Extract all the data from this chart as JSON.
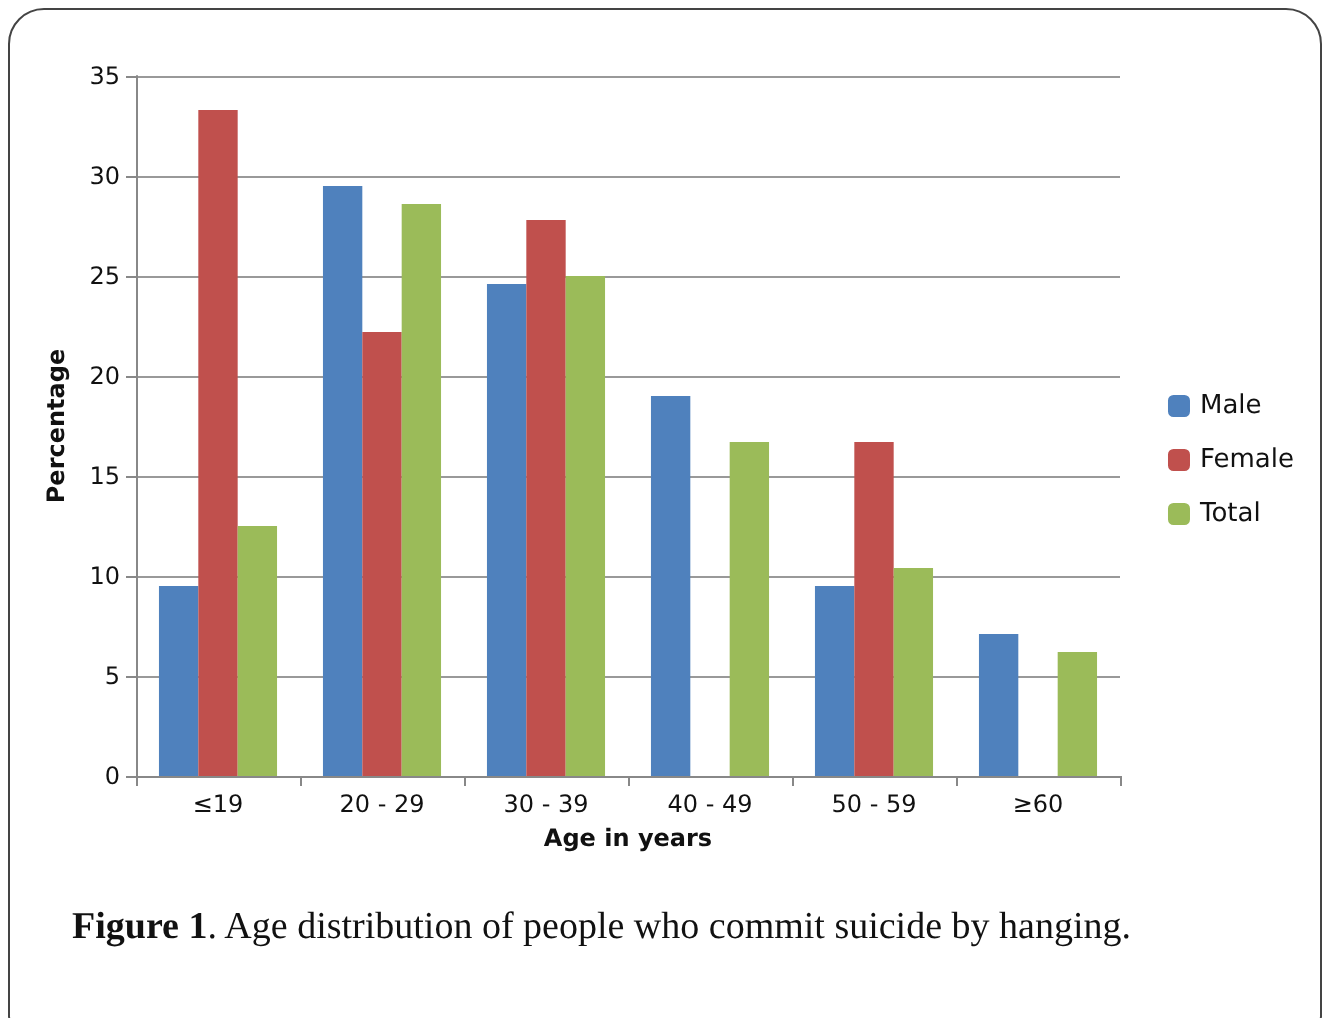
{
  "chart_data": {
    "type": "bar",
    "xlabel": "Age in years",
    "ylabel": "Percentage",
    "categories": [
      "≤19",
      "20 - 29",
      "30 - 39",
      "40 - 49",
      "50 - 59",
      "≥60"
    ],
    "series": [
      {
        "name": "Male",
        "color": "#4f81bd",
        "values": [
          9.5,
          29.5,
          24.6,
          19,
          9.5,
          7.1
        ]
      },
      {
        "name": "Female",
        "color": "#c0504d",
        "values": [
          33.3,
          22.2,
          27.8,
          0,
          16.7,
          0
        ]
      },
      {
        "name": "Total",
        "color": "#9bbb59",
        "values": [
          12.5,
          28.6,
          25,
          16.7,
          10.4,
          6.2
        ]
      }
    ],
    "ylim": [
      0,
      35
    ],
    "yticks": [
      0,
      5,
      10,
      15,
      20,
      25,
      30,
      35
    ],
    "grid": "y",
    "legend": "right",
    "annotations": [
      "Figure 1. Age distribution of people who commit suicide by hanging."
    ]
  }
}
